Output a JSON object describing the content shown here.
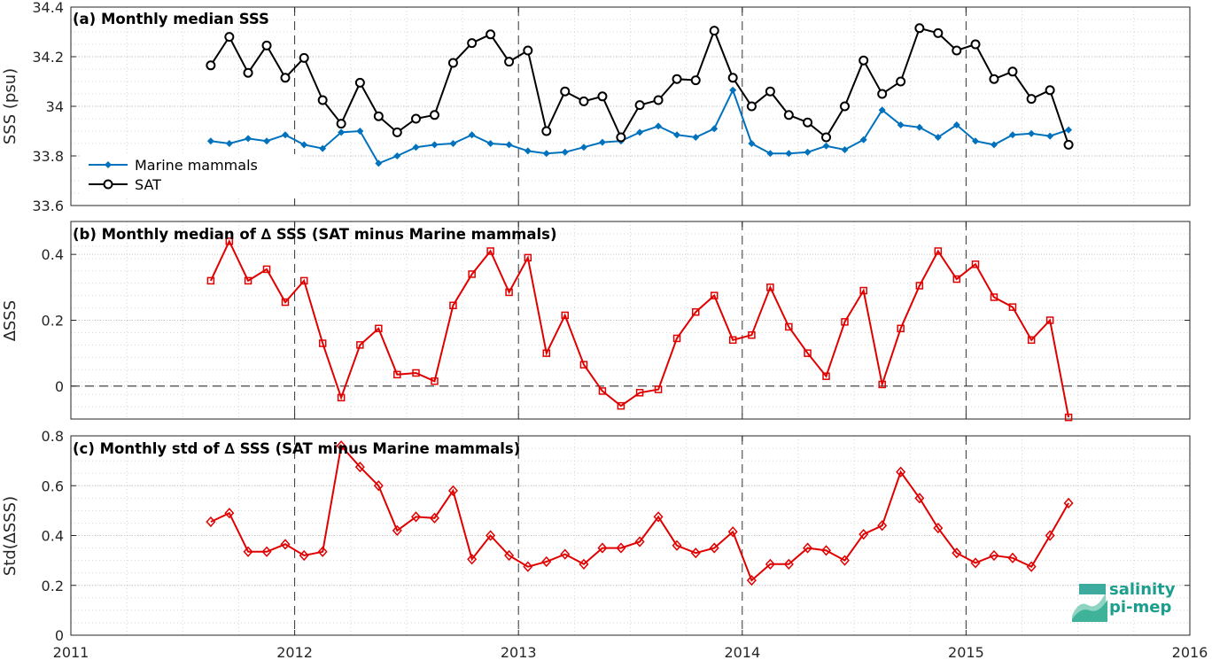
{
  "logo": {
    "line1": "salinity",
    "line2": "pi-mep"
  },
  "colors": {
    "marine": "#0072BD",
    "sat": "#000000",
    "delta": "#E00000"
  },
  "chart_data": [
    {
      "type": "line",
      "title": "(a) Monthly median SSS",
      "xlabel": "",
      "ylabel": "SSS (psu)",
      "xlim": [
        2011,
        2016
      ],
      "ylim": [
        33.6,
        34.4
      ],
      "yticks": [
        "33.6",
        "33.8",
        "34",
        "34.2",
        "34.4"
      ],
      "xticks": [
        "2011",
        "2012",
        "2013",
        "2014",
        "2015",
        "2016"
      ],
      "grid": true,
      "legend": "left",
      "x": [
        2011.625,
        2011.708,
        2011.792,
        2011.875,
        2011.958,
        2012.042,
        2012.125,
        2012.208,
        2012.292,
        2012.375,
        2012.458,
        2012.542,
        2012.625,
        2012.708,
        2012.792,
        2012.875,
        2012.958,
        2013.042,
        2013.125,
        2013.208,
        2013.292,
        2013.375,
        2013.458,
        2013.542,
        2013.625,
        2013.708,
        2013.792,
        2013.875,
        2013.958,
        2014.042,
        2014.125,
        2014.208,
        2014.292,
        2014.375,
        2014.458,
        2014.542,
        2014.625,
        2014.708,
        2014.792,
        2014.875,
        2014.958,
        2015.042,
        2015.125,
        2015.208,
        2015.292,
        2015.375,
        2015.458
      ],
      "series": [
        {
          "name": "Marine mammals",
          "marker": "diamond",
          "values": [
            33.86,
            33.85,
            33.87,
            33.86,
            33.885,
            33.845,
            33.83,
            33.895,
            33.9,
            33.77,
            33.8,
            33.835,
            33.845,
            33.85,
            33.885,
            33.85,
            33.845,
            33.82,
            33.81,
            33.815,
            33.835,
            33.855,
            33.86,
            33.895,
            33.92,
            33.885,
            33.875,
            33.91,
            34.065,
            33.85,
            33.81,
            33.81,
            33.815,
            33.84,
            33.825,
            33.865,
            33.985,
            33.925,
            33.915,
            33.875,
            33.925,
            33.86,
            33.845,
            33.885,
            33.89,
            33.88,
            33.905
          ]
        },
        {
          "name": "SAT",
          "marker": "circle",
          "values": [
            34.165,
            34.28,
            34.135,
            34.245,
            34.115,
            34.195,
            34.025,
            33.93,
            34.095,
            33.96,
            33.895,
            33.95,
            33.965,
            34.175,
            34.255,
            34.29,
            34.18,
            34.225,
            33.9,
            34.06,
            34.02,
            34.04,
            33.875,
            34.005,
            34.025,
            34.11,
            34.105,
            34.305,
            34.115,
            34.0,
            34.06,
            33.965,
            33.935,
            33.875,
            34.0,
            34.185,
            34.05,
            34.1,
            34.315,
            34.295,
            34.225,
            34.25,
            34.11,
            34.14,
            34.03,
            34.065,
            33.845
          ]
        }
      ]
    },
    {
      "type": "line",
      "title": "(b) Monthly median of ∆ SSS (SAT minus Marine mammals)",
      "xlabel": "",
      "ylabel": "∆SSS",
      "xlim": [
        2011,
        2016
      ],
      "ylim": [
        -0.1,
        0.5
      ],
      "yticks": [
        "0",
        "0.2",
        "0.4"
      ],
      "grid": true,
      "zero_line": true,
      "x": [
        2011.625,
        2011.708,
        2011.792,
        2011.875,
        2011.958,
        2012.042,
        2012.125,
        2012.208,
        2012.292,
        2012.375,
        2012.458,
        2012.542,
        2012.625,
        2012.708,
        2012.792,
        2012.875,
        2012.958,
        2013.042,
        2013.125,
        2013.208,
        2013.292,
        2013.375,
        2013.458,
        2013.542,
        2013.625,
        2013.708,
        2013.792,
        2013.875,
        2013.958,
        2014.042,
        2014.125,
        2014.208,
        2014.292,
        2014.375,
        2014.458,
        2014.542,
        2014.625,
        2014.708,
        2014.792,
        2014.875,
        2014.958,
        2015.042,
        2015.125,
        2015.208,
        2015.292,
        2015.375,
        2015.458
      ],
      "series": [
        {
          "name": "",
          "marker": "square",
          "values": [
            0.32,
            0.44,
            0.32,
            0.355,
            0.255,
            0.32,
            0.13,
            -0.035,
            0.125,
            0.175,
            0.035,
            0.04,
            0.015,
            0.245,
            0.34,
            0.41,
            0.285,
            0.39,
            0.1,
            0.215,
            0.065,
            -0.015,
            -0.06,
            -0.02,
            -0.01,
            0.145,
            0.225,
            0.275,
            0.14,
            0.155,
            0.3,
            0.18,
            0.1,
            0.03,
            0.195,
            0.29,
            0.005,
            0.175,
            0.305,
            0.41,
            0.325,
            0.37,
            0.27,
            0.24,
            0.14,
            0.2,
            -0.095
          ]
        }
      ]
    },
    {
      "type": "line",
      "title": "(c) Monthly std of ∆ SSS (SAT minus Marine mammals)",
      "xlabel": "",
      "ylabel": "Std(∆SSS)",
      "xlim": [
        2011,
        2016
      ],
      "ylim": [
        0,
        0.8
      ],
      "yticks": [
        "0",
        "0.2",
        "0.4",
        "0.6",
        "0.8"
      ],
      "xticks": [
        "2011",
        "2012",
        "2013",
        "2014",
        "2015",
        "2016"
      ],
      "grid": true,
      "x": [
        2011.625,
        2011.708,
        2011.792,
        2011.875,
        2011.958,
        2012.042,
        2012.125,
        2012.208,
        2012.292,
        2012.375,
        2012.458,
        2012.542,
        2012.625,
        2012.708,
        2012.792,
        2012.875,
        2012.958,
        2013.042,
        2013.125,
        2013.208,
        2013.292,
        2013.375,
        2013.458,
        2013.542,
        2013.625,
        2013.708,
        2013.792,
        2013.875,
        2013.958,
        2014.042,
        2014.125,
        2014.208,
        2014.292,
        2014.375,
        2014.458,
        2014.542,
        2014.625,
        2014.708,
        2014.792,
        2014.875,
        2014.958,
        2015.042,
        2015.125,
        2015.208,
        2015.292,
        2015.375,
        2015.458
      ],
      "series": [
        {
          "name": "",
          "marker": "diamond-open",
          "values": [
            0.455,
            0.49,
            0.335,
            0.335,
            0.365,
            0.32,
            0.335,
            0.76,
            0.675,
            0.6,
            0.42,
            0.475,
            0.47,
            0.58,
            0.305,
            0.4,
            0.32,
            0.275,
            0.295,
            0.325,
            0.285,
            0.35,
            0.35,
            0.375,
            0.475,
            0.36,
            0.33,
            0.35,
            0.415,
            0.22,
            0.285,
            0.285,
            0.35,
            0.34,
            0.3,
            0.405,
            0.44,
            0.655,
            0.55,
            0.43,
            0.33,
            0.29,
            0.32,
            0.31,
            0.275,
            0.4,
            0.53
          ]
        }
      ]
    }
  ]
}
